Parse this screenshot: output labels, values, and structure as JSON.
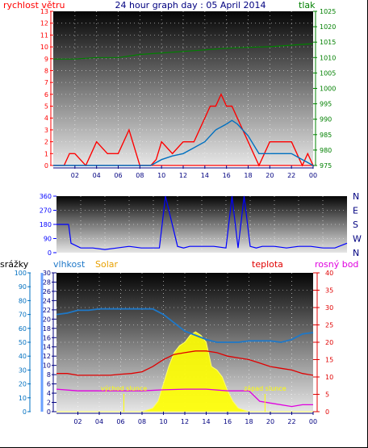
{
  "colors": {
    "wind": "#ff0000",
    "pressure": "#008000",
    "direction": "#0000ff",
    "rain": "#0070c0",
    "humidity": "#1e78c8",
    "solar": "#ffff00",
    "temperature": "#e00000",
    "dewpoint": "#e000e0",
    "title": "#000080",
    "annotation": "#ffff00"
  },
  "chart_data": [
    {
      "id": "wind-pressure",
      "type": "line",
      "title": "24 hour graph day : 05 April 2014",
      "left_axis_label": "rychlost větru",
      "right_axis_label": "tlak",
      "left_ticks": [
        "0",
        "1",
        "2",
        "3",
        "4",
        "5",
        "6",
        "7",
        "8",
        "9",
        "10",
        "11",
        "12",
        "13"
      ],
      "right_ticks": [
        "975",
        "980",
        "985",
        "990",
        "995",
        "1000",
        "1005",
        "1010",
        "1015",
        "1020",
        "1025"
      ],
      "x_ticks": [
        "02",
        "04",
        "06",
        "08",
        "10",
        "12",
        "14",
        "16",
        "18",
        "20",
        "22",
        "00"
      ],
      "xlim": [
        0,
        24
      ],
      "ylim_left": [
        0,
        13
      ],
      "ylim_right": [
        975,
        1025
      ],
      "series": [
        {
          "name": "wind_gust",
          "color": "#ff0000",
          "x": [
            0,
            1,
            1.5,
            2,
            3,
            4,
            5,
            6,
            7,
            8,
            9,
            9.5,
            10,
            11,
            12,
            13,
            13.5,
            14,
            14.5,
            15,
            15.5,
            16,
            16.5,
            17,
            17.5,
            18,
            19,
            20,
            21,
            22,
            23,
            23.5,
            24
          ],
          "y": [
            0,
            0,
            1,
            1,
            0,
            2,
            1,
            1,
            3,
            0,
            0,
            0.5,
            2,
            1,
            2,
            2,
            3,
            4,
            5,
            5,
            6,
            5,
            5,
            4,
            3,
            2,
            0,
            2,
            2,
            2,
            0,
            1,
            0
          ]
        },
        {
          "name": "wind_avg",
          "color": "#0070c0",
          "x": [
            0,
            2,
            4,
            6,
            8,
            9,
            10,
            11,
            12,
            13,
            14,
            15,
            16,
            16.5,
            17,
            18,
            19,
            20,
            21,
            22,
            23,
            24
          ],
          "y": [
            0,
            0,
            0,
            0,
            0,
            0,
            0.5,
            0.8,
            1,
            1.5,
            2,
            3,
            3.5,
            3.8,
            3.5,
            2.5,
            1,
            1,
            1,
            1,
            0.5,
            0
          ]
        },
        {
          "name": "pressure",
          "color": "#008000",
          "axis": "right",
          "x": [
            0,
            2,
            4,
            6,
            8,
            10,
            12,
            14,
            16,
            18,
            20,
            22,
            24
          ],
          "y": [
            1009.5,
            1009.5,
            1010,
            1010,
            1011,
            1011.5,
            1012,
            1012.5,
            1013,
            1013.3,
            1013.5,
            1014,
            1014.5
          ]
        }
      ]
    },
    {
      "id": "direction",
      "type": "line",
      "title": "",
      "y_ticks": [
        "0",
        "90",
        "180",
        "270",
        "360"
      ],
      "compass_labels": [
        "N",
        "W",
        "S",
        "E",
        "N"
      ],
      "xlim": [
        0,
        24
      ],
      "ylim": [
        0,
        360
      ],
      "series": [
        {
          "name": "direction",
          "color": "#0000ff",
          "x": [
            0,
            1,
            1.2,
            2,
            3,
            4,
            5,
            6,
            7,
            8,
            8.5,
            9,
            10,
            10.5,
            11,
            12,
            13,
            14,
            14.5,
            15,
            15.5,
            16,
            16.5,
            17,
            18,
            19,
            20,
            21,
            22,
            23,
            24
          ],
          "y": [
            180,
            180,
            60,
            30,
            30,
            20,
            30,
            40,
            30,
            30,
            30,
            360,
            40,
            30,
            40,
            40,
            40,
            30,
            360,
            30,
            360,
            40,
            30,
            40,
            40,
            30,
            40,
            40,
            30,
            30,
            60
          ]
        }
      ]
    },
    {
      "id": "temp-solar",
      "type": "line",
      "title": "",
      "rain_label": "srážky",
      "humidity_label": "vlhkost",
      "solar_label": "Solar",
      "temperature_label": "teplota",
      "dewpoint_label": "rosný bod",
      "rain_ticks": [
        "0",
        "10",
        "20",
        "30",
        "40",
        "50",
        "60",
        "70",
        "80",
        "90",
        "100"
      ],
      "humidity_ticks": [
        "0",
        "2",
        "4",
        "6",
        "8",
        "10",
        "12",
        "14",
        "16",
        "18",
        "20",
        "22",
        "24",
        "26",
        "28",
        "30"
      ],
      "temp_ticks": [
        "0",
        "5",
        "10",
        "15",
        "20",
        "25",
        "30",
        "35",
        "40"
      ],
      "x_ticks": [
        "02",
        "04",
        "06",
        "08",
        "10",
        "12",
        "14",
        "16",
        "18",
        "20",
        "22",
        "00"
      ],
      "annotations": [
        {
          "text": "východ slunce",
          "x": 6.3
        },
        {
          "text": "západ slunce",
          "x": 19.5
        }
      ],
      "xlim": [
        0,
        24
      ],
      "ylim_temp": [
        0,
        40
      ],
      "ylim_rain": [
        0,
        100
      ],
      "series": [
        {
          "name": "humidity",
          "color": "#1e78c8",
          "axis": "rain",
          "x": [
            0,
            1,
            2,
            3,
            4,
            5,
            6,
            7,
            8,
            9,
            10,
            11,
            12,
            13,
            14,
            15,
            16,
            17,
            18,
            19,
            20,
            21,
            22,
            23,
            24
          ],
          "y": [
            70,
            71,
            73,
            73,
            74,
            74,
            74,
            74,
            74,
            74,
            70,
            64,
            58,
            55,
            52,
            50,
            50,
            50,
            51,
            51,
            51,
            50,
            52,
            56,
            57
          ]
        },
        {
          "name": "temperature",
          "color": "#e00000",
          "axis": "temp",
          "x": [
            0,
            1,
            2,
            3,
            4,
            5,
            6,
            7,
            8,
            9,
            10,
            11,
            12,
            13,
            14,
            15,
            16,
            17,
            18,
            19,
            20,
            21,
            22,
            23,
            24
          ],
          "y": [
            11,
            11,
            10.5,
            10.5,
            10.5,
            10.5,
            10.8,
            11,
            11.5,
            13,
            15,
            16.5,
            17,
            17.5,
            17.5,
            17,
            16,
            15.5,
            15,
            14,
            13,
            12.5,
            12,
            11,
            10.5
          ]
        },
        {
          "name": "dewpoint",
          "color": "#e000e0",
          "axis": "temp",
          "x": [
            0,
            2,
            4,
            6,
            8,
            10,
            12,
            14,
            16,
            18,
            19,
            20,
            22,
            23,
            24
          ],
          "y": [
            6.5,
            6,
            6,
            6,
            6,
            6.3,
            6.5,
            6.5,
            6,
            6,
            3,
            2.5,
            1.5,
            2,
            2
          ]
        },
        {
          "name": "solar",
          "color": "#ffff00",
          "axis": "temp",
          "x": [
            0,
            8,
            9,
            9.5,
            10,
            10.5,
            11,
            11.5,
            12,
            12.5,
            13,
            13.5,
            14,
            14.5,
            15,
            15.5,
            16,
            16.5,
            17,
            18,
            24
          ],
          "y": [
            0,
            0,
            1,
            3,
            8,
            13,
            17,
            19,
            20,
            22,
            23,
            22,
            20,
            13,
            12,
            10,
            6,
            3,
            1,
            0,
            0
          ]
        }
      ]
    }
  ]
}
